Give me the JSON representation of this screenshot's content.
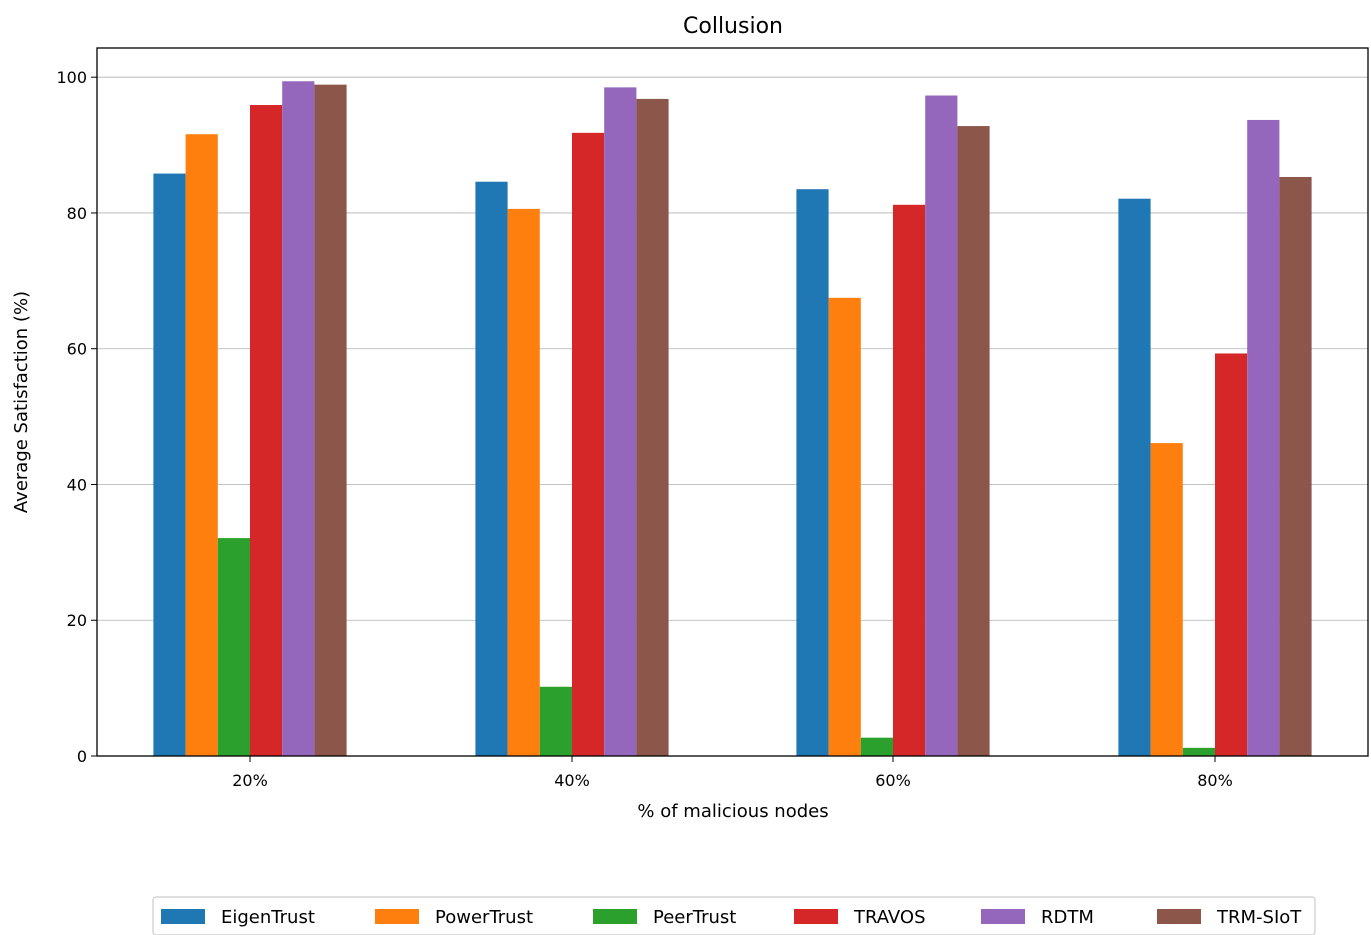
{
  "chart_data": {
    "type": "bar",
    "title": "Collusion",
    "xlabel": "% of malicious nodes",
    "ylabel": "Average Satisfaction (%)",
    "categories": [
      "20%",
      "40%",
      "60%",
      "80%"
    ],
    "ylim": [
      0,
      104.3
    ],
    "yticks": [
      0,
      20,
      40,
      60,
      80,
      100
    ],
    "grid": "horizontal",
    "legend_position": "bottom",
    "series": [
      {
        "name": "EigenTrust",
        "color": "#1f77b4",
        "values": [
          85.8,
          84.6,
          83.5,
          82.1
        ]
      },
      {
        "name": "PowerTrust",
        "color": "#ff7f0e",
        "values": [
          91.6,
          80.6,
          67.5,
          46.1
        ]
      },
      {
        "name": "PeerTrust",
        "color": "#2ca02c",
        "values": [
          32.1,
          10.2,
          2.7,
          1.2
        ]
      },
      {
        "name": "TRAVOS",
        "color": "#d62728",
        "values": [
          95.9,
          91.8,
          81.2,
          59.3
        ]
      },
      {
        "name": "RDTM",
        "color": "#9467bd",
        "values": [
          99.4,
          98.5,
          97.3,
          93.7
        ]
      },
      {
        "name": "TRM-SIoT",
        "color": "#8c564b",
        "values": [
          98.9,
          96.8,
          92.8,
          85.3
        ]
      }
    ]
  }
}
